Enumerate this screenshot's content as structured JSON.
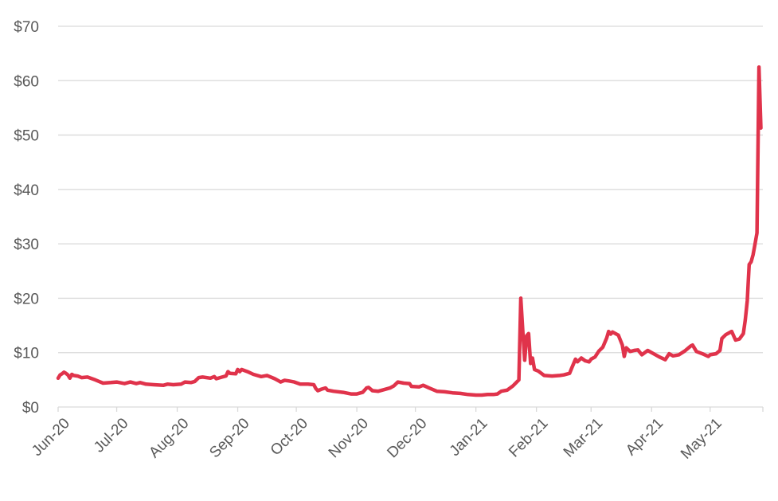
{
  "chart_data": {
    "type": "line",
    "title": "",
    "xlabel": "",
    "ylabel": "",
    "ylim": [
      0,
      70
    ],
    "y_ticks": [
      "$0",
      "$10",
      "$20",
      "$30",
      "$40",
      "$50",
      "$60",
      "$70"
    ],
    "x_ticks": [
      "Jun-20",
      "Jul-20",
      "Aug-20",
      "Sep-20",
      "Oct-20",
      "Nov-20",
      "Dec-20",
      "Jan-21",
      "Feb-21",
      "Mar-21",
      "Apr-21",
      "May-21"
    ],
    "grid": true,
    "legend": "none",
    "line_color": "#e0334b",
    "series": [
      {
        "values": [
          [
            "2020-06-01",
            5.3
          ],
          [
            "2020-06-02",
            5.9
          ],
          [
            "2020-06-03",
            6.1
          ],
          [
            "2020-06-04",
            6.4
          ],
          [
            "2020-06-05",
            6.2
          ],
          [
            "2020-06-06",
            5.9
          ],
          [
            "2020-06-07",
            5.3
          ],
          [
            "2020-06-08",
            6.0
          ],
          [
            "2020-06-09",
            5.8
          ],
          [
            "2020-06-11",
            5.7
          ],
          [
            "2020-06-13",
            5.4
          ],
          [
            "2020-06-16",
            5.5
          ],
          [
            "2020-06-20",
            5.0
          ],
          [
            "2020-06-24",
            4.4
          ],
          [
            "2020-06-28",
            4.5
          ],
          [
            "2020-07-01",
            4.6
          ],
          [
            "2020-07-05",
            4.3
          ],
          [
            "2020-07-08",
            4.6
          ],
          [
            "2020-07-11",
            4.3
          ],
          [
            "2020-07-13",
            4.5
          ],
          [
            "2020-07-16",
            4.2
          ],
          [
            "2020-07-20",
            4.1
          ],
          [
            "2020-07-25",
            4.0
          ],
          [
            "2020-07-27",
            4.2
          ],
          [
            "2020-07-30",
            4.1
          ],
          [
            "2020-08-03",
            4.2
          ],
          [
            "2020-08-05",
            4.6
          ],
          [
            "2020-08-08",
            4.5
          ],
          [
            "2020-08-10",
            4.7
          ],
          [
            "2020-08-12",
            5.4
          ],
          [
            "2020-08-14",
            5.5
          ],
          [
            "2020-08-18",
            5.3
          ],
          [
            "2020-08-20",
            5.6
          ],
          [
            "2020-08-21",
            5.2
          ],
          [
            "2020-08-24",
            5.5
          ],
          [
            "2020-08-26",
            5.7
          ],
          [
            "2020-08-27",
            6.5
          ],
          [
            "2020-08-28",
            6.2
          ],
          [
            "2020-08-31",
            6.1
          ],
          [
            "2020-09-01",
            6.9
          ],
          [
            "2020-09-02",
            6.5
          ],
          [
            "2020-09-03",
            6.9
          ],
          [
            "2020-09-06",
            6.5
          ],
          [
            "2020-09-09",
            6.0
          ],
          [
            "2020-09-13",
            5.6
          ],
          [
            "2020-09-16",
            5.8
          ],
          [
            "2020-09-20",
            5.2
          ],
          [
            "2020-09-22",
            4.8
          ],
          [
            "2020-09-23",
            4.6
          ],
          [
            "2020-09-25",
            4.9
          ],
          [
            "2020-09-27",
            4.8
          ],
          [
            "2020-09-30",
            4.6
          ],
          [
            "2020-10-03",
            4.2
          ],
          [
            "2020-10-07",
            4.2
          ],
          [
            "2020-10-10",
            4.1
          ],
          [
            "2020-10-11",
            3.4
          ],
          [
            "2020-10-12",
            3.0
          ],
          [
            "2020-10-14",
            3.3
          ],
          [
            "2020-10-16",
            3.5
          ],
          [
            "2020-10-17",
            3.1
          ],
          [
            "2020-10-20",
            2.9
          ],
          [
            "2020-10-25",
            2.7
          ],
          [
            "2020-10-29",
            2.4
          ],
          [
            "2020-11-01",
            2.4
          ],
          [
            "2020-11-04",
            2.7
          ],
          [
            "2020-11-06",
            3.5
          ],
          [
            "2020-11-07",
            3.6
          ],
          [
            "2020-11-09",
            3.0
          ],
          [
            "2020-11-12",
            2.9
          ],
          [
            "2020-11-14",
            3.1
          ],
          [
            "2020-11-18",
            3.5
          ],
          [
            "2020-11-20",
            3.9
          ],
          [
            "2020-11-22",
            4.6
          ],
          [
            "2020-11-25",
            4.4
          ],
          [
            "2020-11-28",
            4.3
          ],
          [
            "2020-11-29",
            3.8
          ],
          [
            "2020-12-03",
            3.7
          ],
          [
            "2020-12-05",
            4.0
          ],
          [
            "2020-12-08",
            3.5
          ],
          [
            "2020-12-12",
            2.9
          ],
          [
            "2020-12-16",
            2.8
          ],
          [
            "2020-12-20",
            2.6
          ],
          [
            "2020-12-24",
            2.5
          ],
          [
            "2020-12-28",
            2.3
          ],
          [
            "2021-01-01",
            2.2
          ],
          [
            "2021-01-04",
            2.2
          ],
          [
            "2021-01-07",
            2.3
          ],
          [
            "2021-01-10",
            2.3
          ],
          [
            "2021-01-12",
            2.4
          ],
          [
            "2021-01-14",
            2.9
          ],
          [
            "2021-01-17",
            3.1
          ],
          [
            "2021-01-20",
            3.9
          ],
          [
            "2021-01-23",
            5.0
          ],
          [
            "2021-01-24",
            20.0
          ],
          [
            "2021-01-25",
            14.0
          ],
          [
            "2021-01-26",
            8.6
          ],
          [
            "2021-01-27",
            13.1
          ],
          [
            "2021-01-28",
            13.5
          ],
          [
            "2021-01-29",
            8.0
          ],
          [
            "2021-01-30",
            9.0
          ],
          [
            "2021-01-31",
            6.9
          ],
          [
            "2021-02-02",
            6.6
          ],
          [
            "2021-02-05",
            5.8
          ],
          [
            "2021-02-09",
            5.7
          ],
          [
            "2021-02-13",
            5.8
          ],
          [
            "2021-02-15",
            5.9
          ],
          [
            "2021-02-18",
            6.2
          ],
          [
            "2021-02-19",
            7.1
          ],
          [
            "2021-02-21",
            8.8
          ],
          [
            "2021-02-22",
            8.3
          ],
          [
            "2021-02-24",
            9.0
          ],
          [
            "2021-02-26",
            8.5
          ],
          [
            "2021-02-28",
            8.3
          ],
          [
            "2021-03-01",
            8.8
          ],
          [
            "2021-03-03",
            9.2
          ],
          [
            "2021-03-05",
            10.3
          ],
          [
            "2021-03-07",
            11.0
          ],
          [
            "2021-03-09",
            12.7
          ],
          [
            "2021-03-10",
            13.9
          ],
          [
            "2021-03-11",
            13.4
          ],
          [
            "2021-03-12",
            13.8
          ],
          [
            "2021-03-15",
            13.2
          ],
          [
            "2021-03-17",
            11.4
          ],
          [
            "2021-03-18",
            9.3
          ],
          [
            "2021-03-19",
            10.9
          ],
          [
            "2021-03-21",
            10.2
          ],
          [
            "2021-03-23",
            10.4
          ],
          [
            "2021-03-25",
            10.5
          ],
          [
            "2021-03-27",
            9.6
          ],
          [
            "2021-03-30",
            10.4
          ],
          [
            "2021-04-02",
            9.8
          ],
          [
            "2021-04-05",
            9.2
          ],
          [
            "2021-04-08",
            8.7
          ],
          [
            "2021-04-10",
            9.8
          ],
          [
            "2021-04-12",
            9.4
          ],
          [
            "2021-04-15",
            9.6
          ],
          [
            "2021-04-18",
            10.3
          ],
          [
            "2021-04-21",
            11.2
          ],
          [
            "2021-04-22",
            11.4
          ],
          [
            "2021-04-24",
            10.2
          ],
          [
            "2021-04-27",
            9.8
          ],
          [
            "2021-04-30",
            9.3
          ],
          [
            "2021-05-01",
            9.6
          ],
          [
            "2021-05-04",
            9.8
          ],
          [
            "2021-05-06",
            10.4
          ],
          [
            "2021-05-07",
            12.6
          ],
          [
            "2021-05-09",
            13.3
          ],
          [
            "2021-05-12",
            13.9
          ],
          [
            "2021-05-14",
            12.3
          ],
          [
            "2021-05-16",
            12.5
          ],
          [
            "2021-05-18",
            13.5
          ],
          [
            "2021-05-19",
            16.0
          ],
          [
            "2021-05-20",
            19.5
          ],
          [
            "2021-05-21",
            26.2
          ],
          [
            "2021-05-22",
            26.7
          ],
          [
            "2021-05-23",
            28.0
          ],
          [
            "2021-05-24",
            30.0
          ],
          [
            "2021-05-25",
            32.0
          ],
          [
            "2021-05-26",
            62.5
          ],
          [
            "2021-05-27",
            51.3
          ]
        ]
      }
    ]
  }
}
